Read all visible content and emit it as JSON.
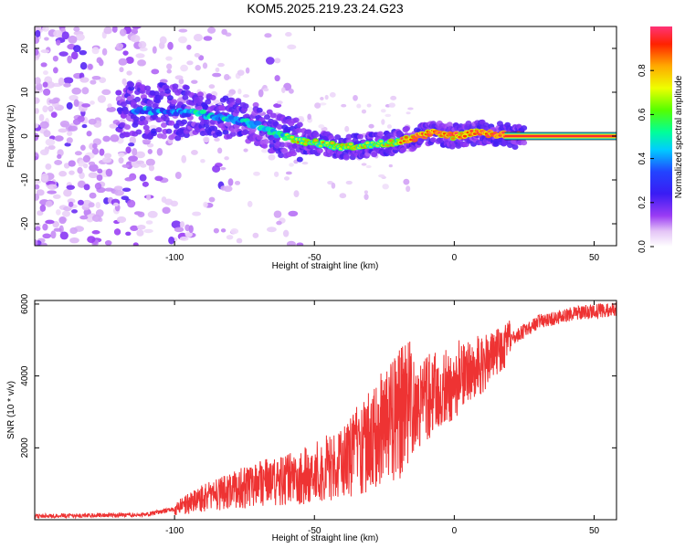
{
  "chart_data": [
    {
      "type": "heatmap",
      "title": "KOM5.2025.219.23.24.G23",
      "xlabel": "Height of straight line (km)",
      "ylabel": "Frequency (Hz)",
      "xlim": [
        -150,
        58
      ],
      "ylim": [
        -25,
        25
      ],
      "xticks": [
        "-100",
        "-50",
        "0",
        "50"
      ],
      "xtick_values": [
        -100,
        -50,
        0,
        50
      ],
      "yticks": [
        "-20",
        "-10",
        "0",
        "10",
        "20"
      ],
      "ytick_values": [
        -20,
        -10,
        0,
        10,
        20
      ],
      "colorbar": {
        "label": "Normalized spectral amplitude",
        "ticks": [
          "0.0",
          "0.2",
          "0.4",
          "0.6",
          "0.8"
        ],
        "tick_values": [
          0.0,
          0.2,
          0.4,
          0.6,
          0.8
        ],
        "range": [
          0,
          1
        ]
      },
      "ridge": {
        "description": "dominant frequency track",
        "x": [
          -115,
          -100,
          -90,
          -80,
          -70,
          -62,
          -55,
          -45,
          -38,
          -30,
          -22,
          -15,
          -8,
          0,
          5,
          10,
          15,
          20,
          58
        ],
        "y": [
          6,
          5.5,
          5,
          4,
          2.5,
          0,
          -1,
          -2,
          -2.5,
          -2,
          -1.5,
          -0.5,
          0.8,
          0,
          0.5,
          0.8,
          0.5,
          0,
          0
        ]
      }
    },
    {
      "type": "line",
      "xlabel": "Height of straight line (km)",
      "ylabel": "SNR (10 * v/v)",
      "xlim": [
        -150,
        58
      ],
      "ylim": [
        0,
        6100
      ],
      "xticks": [
        "-100",
        "-50",
        "0",
        "50"
      ],
      "xtick_values": [
        -100,
        -50,
        0,
        50
      ],
      "yticks": [
        "2000",
        "4000",
        "6000"
      ],
      "ytick_values": [
        2000,
        4000,
        6000
      ],
      "color": "#ee3333",
      "series": [
        {
          "name": "SNR",
          "x": [
            -150,
            -130,
            -110,
            -100,
            -90,
            -80,
            -70,
            -60,
            -50,
            -40,
            -30,
            -20,
            -10,
            0,
            10,
            20,
            30,
            40,
            50,
            58
          ],
          "y": [
            100,
            120,
            140,
            300,
            600,
            800,
            1000,
            1100,
            1300,
            1600,
            2200,
            2900,
            3400,
            3800,
            4300,
            5000,
            5500,
            5700,
            5800,
            5850
          ]
        }
      ]
    }
  ]
}
